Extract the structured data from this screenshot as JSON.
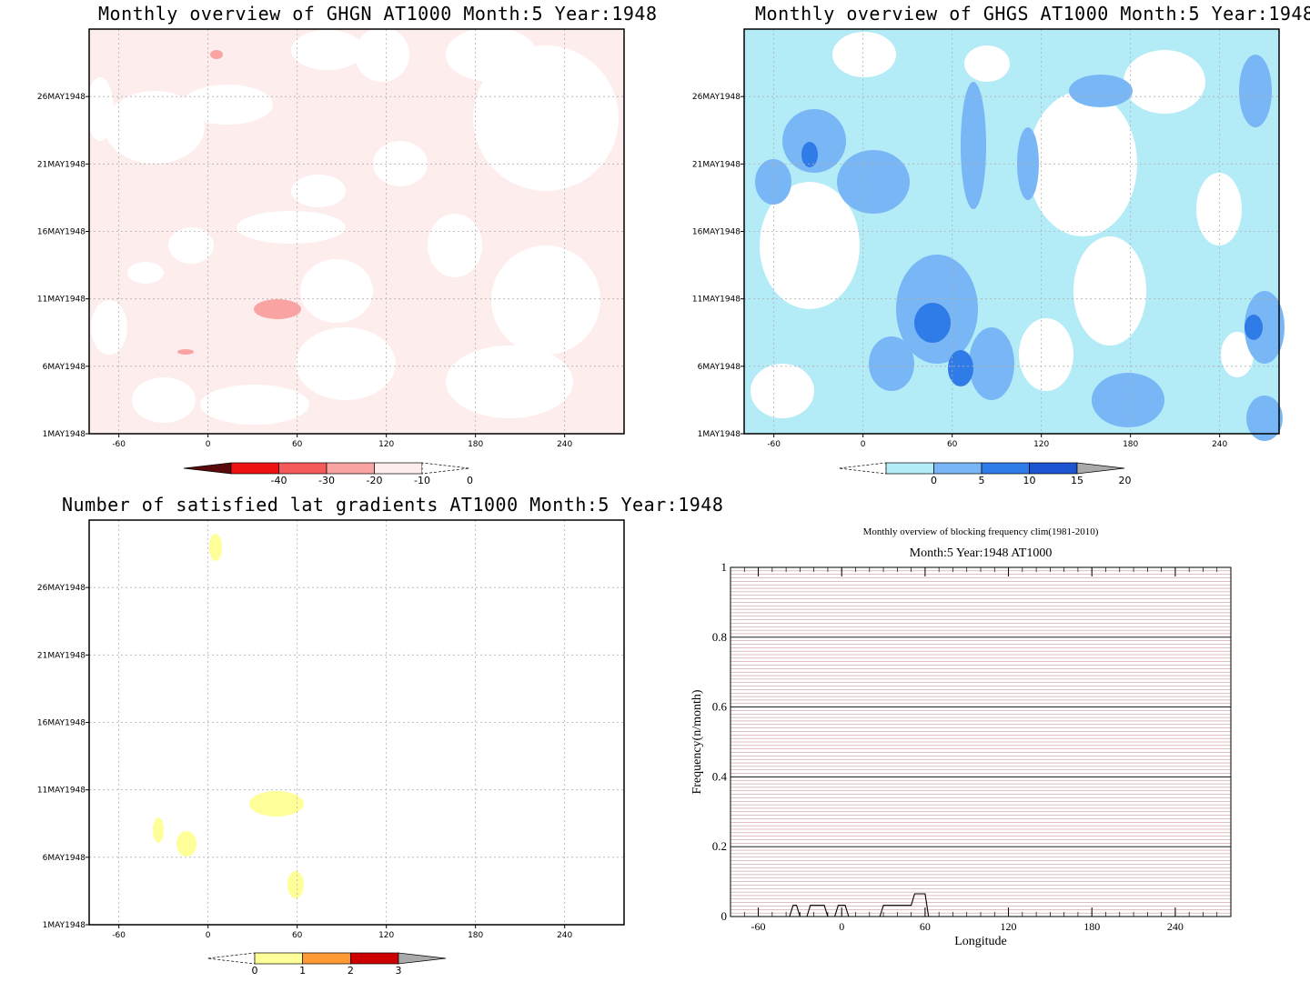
{
  "panels": {
    "ghgn": {
      "title": "Monthly overview of GHGN AT1000 Month:5 Year:1948"
    },
    "ghgs": {
      "title": "Monthly overview of GHGS AT1000 Month:5 Year:1948"
    },
    "grad": {
      "title": "Number of satisfied lat gradients AT1000 Month:5 Year:1948"
    },
    "freq": {
      "title": "Monthly overview of blocking frequency clim(1981-2010)",
      "subtitle": "Month:5 Year:1948  AT1000"
    }
  },
  "colors": {
    "ghgn_bg": "#fdeded",
    "ghgn_patch": "#f9a3a3",
    "ghgs_light": "#b3ecf7",
    "ghgs_mid": "#79b6f5",
    "ghgs_dark": "#2f7be8",
    "ghgs_darkest": "#1c55cf",
    "grad_patch": "#ffff99",
    "freq_grid_minor": "#c08080",
    "freq_line": "#000000"
  },
  "chart_data": [
    {
      "type": "heatmap",
      "title": "Monthly overview of GHGN AT1000 Month:5 Year:1948",
      "x_ticks": [
        "-60",
        "0",
        "60",
        "120",
        "180",
        "240"
      ],
      "y_ticks": [
        "1MAY1948",
        "6MAY1948",
        "11MAY1948",
        "16MAY1948",
        "21MAY1948",
        "26MAY1948"
      ],
      "xlim": [
        -80,
        280
      ],
      "ylim": [
        "1MAY1948",
        "31MAY1948"
      ],
      "grid": true,
      "colorbar": {
        "ticks": [
          "-40",
          "-30",
          "-20",
          "-10",
          "0"
        ],
        "colors": [
          "#5a0a0a",
          "#ee1111",
          "#f55a5a",
          "#f9a3a3",
          "#fdeded",
          "#ffffff"
        ]
      }
    },
    {
      "type": "heatmap",
      "title": "Monthly overview of GHGS AT1000 Month:5 Year:1948",
      "x_ticks": [
        "-60",
        "0",
        "60",
        "120",
        "180",
        "240"
      ],
      "y_ticks": [
        "1MAY1948",
        "6MAY1948",
        "11MAY1948",
        "16MAY1948",
        "21MAY1948",
        "26MAY1948"
      ],
      "xlim": [
        -80,
        280
      ],
      "ylim": [
        "1MAY1948",
        "31MAY1948"
      ],
      "grid": true,
      "colorbar": {
        "ticks": [
          "0",
          "5",
          "10",
          "15",
          "20"
        ],
        "colors": [
          "#ffffff",
          "#b3ecf7",
          "#79b6f5",
          "#2f7be8",
          "#1c55cf",
          "#aaaaaa"
        ]
      }
    },
    {
      "type": "heatmap",
      "title": "Number of satisfied lat gradients AT1000 Month:5 Year:1948",
      "x_ticks": [
        "-60",
        "0",
        "60",
        "120",
        "180",
        "240"
      ],
      "y_ticks": [
        "1MAY1948",
        "6MAY1948",
        "11MAY1948",
        "16MAY1948",
        "21MAY1948",
        "26MAY1948"
      ],
      "xlim": [
        -80,
        280
      ],
      "ylim": [
        "1MAY1948",
        "31MAY1948"
      ],
      "grid": true,
      "colorbar": {
        "ticks": [
          "0",
          "1",
          "2",
          "3"
        ],
        "colors": [
          "#ffffff",
          "#ffff99",
          "#ff9933",
          "#cc0000",
          "#aaaaaa"
        ]
      }
    },
    {
      "type": "line",
      "title": "Monthly overview of blocking frequency clim(1981-2010)",
      "subtitle": "Month:5 Year:1948  AT1000",
      "xlabel": "Longitude",
      "ylabel": "Frequency(n/month)",
      "xlim": [
        -80,
        280
      ],
      "ylim": [
        0,
        1
      ],
      "x_ticks": [
        "-60",
        "0",
        "60",
        "120",
        "180",
        "240"
      ],
      "y_ticks": [
        "0",
        "0.2",
        "0.4",
        "0.6",
        "0.8",
        "1"
      ],
      "grid": true,
      "series": [
        {
          "x": [
            -80,
            -37.5,
            -35,
            -32.5,
            -30,
            -25,
            -22.5,
            -20,
            -17.5,
            -15,
            -12.5,
            -10,
            -5,
            -2.5,
            0,
            2.5,
            5,
            7.5,
            10,
            20,
            27.5,
            30,
            32.5,
            37.5,
            50,
            52.5,
            55,
            57.5,
            60,
            62.5,
            65,
            280
          ],
          "y": [
            0,
            0,
            0.032,
            0.032,
            0,
            0,
            0.032,
            0.032,
            0.032,
            0.032,
            0.032,
            0,
            0,
            0.032,
            0.032,
            0.032,
            0,
            0,
            0,
            0,
            0,
            0.032,
            0.032,
            0.032,
            0.032,
            0.065,
            0.065,
            0.065,
            0.065,
            0,
            0,
            0
          ]
        }
      ]
    }
  ]
}
